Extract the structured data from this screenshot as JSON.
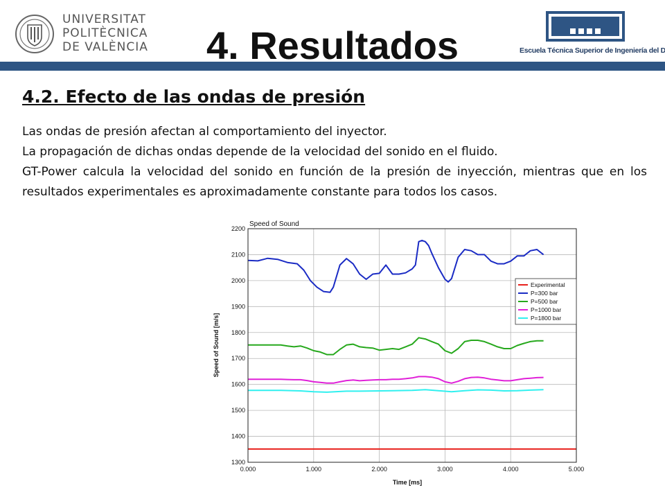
{
  "header": {
    "upv_lines": [
      "UNIVERSITAT",
      "POLITÈCNICA",
      "DE VALÈNCIA"
    ],
    "title": "4. Resultados",
    "etsid_text": "Escuela Técnica Superior de Ingeniería del Diseño",
    "colors": {
      "bar": "#2e5584",
      "etsid": "#233d63"
    }
  },
  "section_title": "4.2. Efecto de las ondas de presión",
  "paragraphs": [
    "Las ondas de presión afectan al comportamiento del inyector.",
    "La propagación de dichas ondas depende de la velocidad del sonido en el fluido.",
    "GT-Power calcula la velocidad del sonido en función de la presión de inyección, mientras que en los resultados experimentales es aproximadamente constante para todos los casos."
  ],
  "chart_data": {
    "type": "line",
    "title": "Speed of Sound",
    "xlabel": "Time [ms]",
    "ylabel": "Speed of Sound [m/s]",
    "xlim": [
      0,
      5
    ],
    "ylim": [
      1300,
      2200
    ],
    "xticks": [
      "0.000",
      "1.000",
      "2.000",
      "3.000",
      "4.000",
      "5.000"
    ],
    "yticks": [
      "1300",
      "1400",
      "1500",
      "1600",
      "1700",
      "1800",
      "1900",
      "2000",
      "2100",
      "2200"
    ],
    "grid": true,
    "legend_position": "right",
    "series": [
      {
        "name": "Experimental",
        "color": "#e8201b",
        "x": [
          0,
          0.5,
          1,
          1.5,
          2,
          2.5,
          3,
          3.5,
          4,
          4.5,
          5
        ],
        "y": [
          1351,
          1351,
          1351,
          1351,
          1351,
          1351,
          1351,
          1351,
          1351,
          1351,
          1351
        ]
      },
      {
        "name": "P=300 bar",
        "color": "#1a2bc4",
        "x": [
          0,
          0.15,
          0.3,
          0.45,
          0.6,
          0.75,
          0.85,
          0.95,
          1.05,
          1.15,
          1.25,
          1.3,
          1.4,
          1.5,
          1.6,
          1.7,
          1.8,
          1.9,
          2.0,
          2.1,
          2.2,
          2.3,
          2.4,
          2.5,
          2.55,
          2.6,
          2.65,
          2.7,
          2.75,
          2.8,
          2.9,
          3.0,
          3.05,
          3.1,
          3.2,
          3.3,
          3.4,
          3.5,
          3.6,
          3.7,
          3.8,
          3.9,
          4.0,
          4.1,
          4.2,
          4.3,
          4.4,
          4.5
        ],
        "y": [
          2078,
          2076,
          2086,
          2082,
          2070,
          2065,
          2040,
          2000,
          1975,
          1958,
          1955,
          1975,
          2060,
          2085,
          2065,
          2025,
          2005,
          2025,
          2028,
          2060,
          2025,
          2025,
          2030,
          2045,
          2060,
          2150,
          2155,
          2150,
          2135,
          2105,
          2050,
          2005,
          1995,
          2008,
          2090,
          2120,
          2115,
          2100,
          2100,
          2075,
          2065,
          2065,
          2075,
          2095,
          2095,
          2115,
          2120,
          2100
        ]
      },
      {
        "name": "P=500 bar",
        "color": "#26a81c",
        "x": [
          0,
          0.5,
          0.6,
          0.7,
          0.8,
          0.9,
          1.0,
          1.1,
          1.2,
          1.3,
          1.4,
          1.5,
          1.6,
          1.7,
          1.8,
          1.9,
          2.0,
          2.1,
          2.2,
          2.3,
          2.4,
          2.5,
          2.6,
          2.7,
          2.8,
          2.9,
          3.0,
          3.1,
          3.2,
          3.3,
          3.4,
          3.5,
          3.6,
          3.7,
          3.8,
          3.9,
          4.0,
          4.1,
          4.2,
          4.3,
          4.4,
          4.5
        ],
        "y": [
          1752,
          1752,
          1748,
          1745,
          1748,
          1740,
          1730,
          1725,
          1715,
          1715,
          1735,
          1752,
          1755,
          1745,
          1742,
          1740,
          1732,
          1735,
          1738,
          1735,
          1745,
          1755,
          1780,
          1775,
          1765,
          1755,
          1730,
          1720,
          1738,
          1765,
          1770,
          1770,
          1765,
          1755,
          1745,
          1738,
          1738,
          1750,
          1758,
          1765,
          1768,
          1768
        ]
      },
      {
        "name": "P=1000 bar",
        "color": "#e020d8",
        "x": [
          0,
          0.5,
          0.6,
          0.7,
          0.8,
          0.9,
          1.0,
          1.1,
          1.2,
          1.3,
          1.4,
          1.5,
          1.6,
          1.7,
          1.8,
          1.9,
          2.0,
          2.1,
          2.2,
          2.3,
          2.4,
          2.5,
          2.6,
          2.7,
          2.8,
          2.9,
          3.0,
          3.1,
          3.2,
          3.3,
          3.4,
          3.5,
          3.6,
          3.7,
          3.8,
          3.9,
          4.0,
          4.1,
          4.2,
          4.3,
          4.4,
          4.5
        ],
        "y": [
          1620,
          1620,
          1619,
          1618,
          1618,
          1615,
          1610,
          1608,
          1605,
          1605,
          1610,
          1615,
          1617,
          1614,
          1616,
          1617,
          1618,
          1618,
          1620,
          1620,
          1622,
          1625,
          1630,
          1630,
          1628,
          1622,
          1610,
          1605,
          1612,
          1622,
          1627,
          1628,
          1625,
          1620,
          1617,
          1614,
          1614,
          1618,
          1622,
          1624,
          1626,
          1627
        ]
      },
      {
        "name": "P=1800 bar",
        "color": "#2ff0ef",
        "x": [
          0,
          0.5,
          0.8,
          1.0,
          1.2,
          1.5,
          1.7,
          2.0,
          2.2,
          2.5,
          2.7,
          2.9,
          3.1,
          3.3,
          3.5,
          3.7,
          3.9,
          4.1,
          4.3,
          4.5
        ],
        "y": [
          1577,
          1577,
          1575,
          1572,
          1570,
          1574,
          1574,
          1575,
          1576,
          1577,
          1580,
          1576,
          1572,
          1576,
          1579,
          1578,
          1575,
          1576,
          1578,
          1580
        ]
      }
    ]
  }
}
